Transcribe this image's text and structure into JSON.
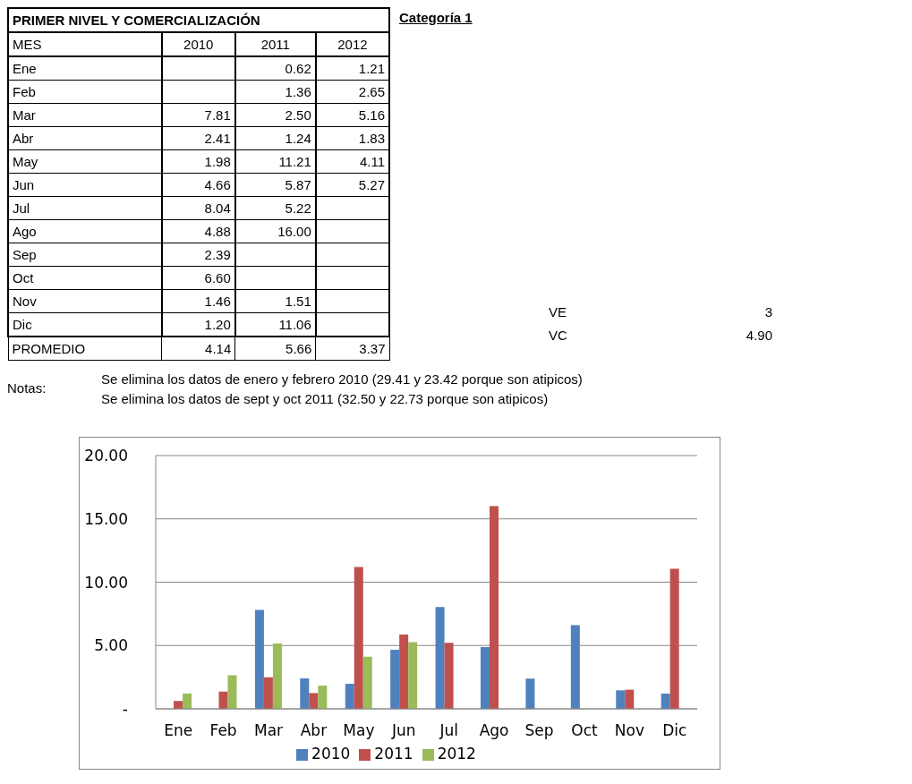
{
  "chart_data": [
    {
      "type": "other",
      "title": "PRIMER NIVEL Y COMERCIALIZACIÓN",
      "categories": [
        "Ene",
        "Feb",
        "Mar",
        "Abr",
        "May",
        "Jun",
        "Jul",
        "Ago",
        "Sep",
        "Oct",
        "Nov",
        "Dic"
      ],
      "series": [
        {
          "name": "2010",
          "values": [
            null,
            null,
            7.81,
            2.41,
            1.98,
            4.66,
            8.04,
            4.88,
            2.39,
            6.6,
            1.46,
            1.2
          ],
          "value_labels": [
            null,
            null,
            "7.81",
            "2.41",
            "1.98",
            "4.66",
            "8.04",
            "4.88",
            "2.39",
            "6.60",
            "1.46",
            "1.20"
          ]
        },
        {
          "name": "2011",
          "values": [
            0.62,
            1.36,
            2.5,
            1.24,
            11.21,
            5.87,
            5.22,
            16,
            null,
            null,
            1.51,
            11.06
          ],
          "value_labels": [
            "0.62",
            "1.36",
            "2.50",
            "1.24",
            "11.21",
            "5.87",
            "5.22",
            "16.00",
            null,
            null,
            "1.51",
            "11.06"
          ]
        },
        {
          "name": "2012",
          "values": [
            1.21,
            2.65,
            5.16,
            1.83,
            4.11,
            5.27,
            null,
            null,
            null,
            null,
            null,
            null
          ],
          "value_labels": [
            "1.21",
            "2.65",
            "5.16",
            "1.83",
            "4.11",
            "5.27",
            null,
            null,
            null,
            null,
            null,
            null
          ]
        }
      ],
      "annotations": [
        "Categoría 1",
        "MES",
        "PROMEDIO",
        "4.14",
        "5.66",
        "3.37",
        "VE",
        "3",
        "VC",
        "4.90",
        "Notas:",
        "Se elimina los datos de enero y febrero 2010 (29.41 y 23.42 porque son atipicos)",
        "Se elimina los datos de sept y oct 2011 (32.50 y 22.73 porque son atipicos)"
      ]
    },
    {
      "type": "bar",
      "categories": [
        "Ene",
        "Feb",
        "Mar",
        "Abr",
        "May",
        "Jun",
        "Jul",
        "Ago",
        "Sep",
        "Oct",
        "Nov",
        "Dic"
      ],
      "series": [
        {
          "name": "2010",
          "color": "#4f81bd",
          "values": [
            null,
            null,
            7.81,
            2.41,
            1.98,
            4.66,
            8.04,
            4.88,
            2.39,
            6.6,
            1.46,
            1.2
          ]
        },
        {
          "name": "2011",
          "color": "#c0504d",
          "values": [
            0.62,
            1.36,
            2.5,
            1.24,
            11.21,
            5.87,
            5.22,
            16,
            null,
            null,
            1.51,
            11.06
          ]
        },
        {
          "name": "2012",
          "color": "#9bbb59",
          "values": [
            1.21,
            2.65,
            5.16,
            1.83,
            4.11,
            5.27,
            null,
            null,
            null,
            null,
            null,
            null
          ]
        }
      ],
      "ylim": [
        0,
        20
      ],
      "yticks": [
        {
          "value": 0,
          "label": "-"
        },
        {
          "value": 5,
          "label": "5.00"
        },
        {
          "value": 10,
          "label": "10.00"
        },
        {
          "value": 15,
          "label": "15.00"
        },
        {
          "value": 20,
          "label": "20.00"
        }
      ],
      "grid": "y",
      "legend": "bottom"
    }
  ]
}
